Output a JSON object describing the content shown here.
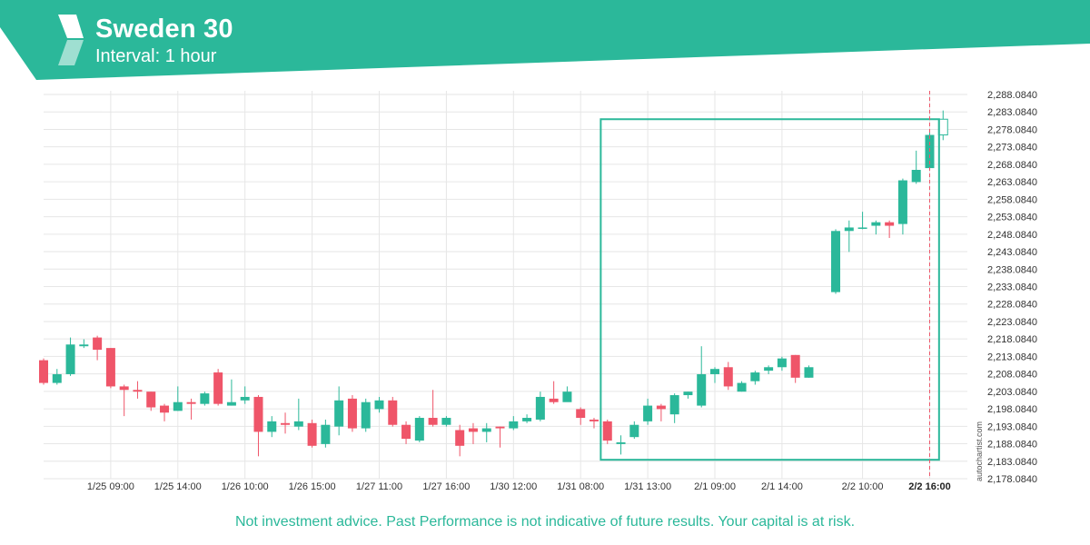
{
  "header": {
    "title": "Sweden 30",
    "subtitle": "Interval: 1 hour",
    "logo_icon": "autochartist-logo-icon",
    "color": "#2bb89a"
  },
  "watermark": "autochartist.com",
  "disclaimer": "Not investment advice. Past Performance is not indicative of future results. Your capital is at risk.",
  "colors": {
    "up": "#2bb89a",
    "down": "#ef5569",
    "pattern": "#2bb89a",
    "grid": "#e6e6e6",
    "axis_text": "#333333"
  },
  "chart_data": {
    "type": "candlestick",
    "y_tick_labels": [
      "2,178.0840",
      "2,183.0840",
      "2,188.0840",
      "2,193.0840",
      "2,198.0840",
      "2,203.0840",
      "2,208.0840",
      "2,213.0840",
      "2,218.0840",
      "2,223.0840",
      "2,228.0840",
      "2,233.0840",
      "2,238.0840",
      "2,243.0840",
      "2,248.0840",
      "2,253.0840",
      "2,258.0840",
      "2,263.0840",
      "2,268.0840",
      "2,273.0840",
      "2,278.0840",
      "2,283.0840",
      "2,288.0840"
    ],
    "ylim": [
      2178.084,
      2288.084
    ],
    "x_tick_labels": [
      "1/25 09:00",
      "1/25 14:00",
      "1/26 10:00",
      "1/26 15:00",
      "1/27 11:00",
      "1/27 16:00",
      "1/30 12:00",
      "1/31 08:00",
      "1/31 13:00",
      "2/1 09:00",
      "2/1 14:00",
      "2/2 10:00",
      "2/2 16:00"
    ],
    "x_tick_candle_index": [
      5,
      10,
      15,
      20,
      25,
      30,
      35,
      40,
      45,
      50,
      55,
      60,
      65
    ],
    "current_label": "2/2 16:00",
    "candles": [
      [
        2212.0,
        2205.5,
        2212.5,
        2205.0
      ],
      [
        2205.5,
        2208.0,
        2209.5,
        2205.0
      ],
      [
        2208.0,
        2216.5,
        2218.5,
        2207.5
      ],
      [
        2216.0,
        2216.5,
        2218.0,
        2215.5
      ],
      [
        2218.5,
        2215.0,
        2219.0,
        2212.0
      ],
      [
        2215.5,
        2204.5,
        2215.5,
        2204.0
      ],
      [
        2204.5,
        2203.5,
        2205.0,
        2196.0
      ],
      [
        2203.5,
        2203.0,
        2206.0,
        2201.0
      ],
      [
        2203.0,
        2198.5,
        2203.0,
        2197.5
      ],
      [
        2199.0,
        2197.0,
        2199.5,
        2194.5
      ],
      [
        2197.5,
        2200.0,
        2204.5,
        2197.5
      ],
      [
        2200.0,
        2199.5,
        2201.0,
        2195.0
      ],
      [
        2199.5,
        2202.5,
        2203.0,
        2199.0
      ],
      [
        2208.5,
        2199.5,
        2209.5,
        2199.0
      ],
      [
        2199.0,
        2200.0,
        2206.5,
        2199.0
      ],
      [
        2200.5,
        2201.5,
        2204.5,
        2199.5
      ],
      [
        2201.5,
        2191.5,
        2202.0,
        2184.5
      ],
      [
        2191.5,
        2194.5,
        2196.0,
        2190.0
      ],
      [
        2194.0,
        2193.5,
        2197.0,
        2191.0
      ],
      [
        2193.0,
        2194.5,
        2201.0,
        2192.0
      ],
      [
        2194.0,
        2187.5,
        2195.0,
        2187.0
      ],
      [
        2188.0,
        2193.5,
        2195.0,
        2187.0
      ],
      [
        2193.0,
        2200.5,
        2204.5,
        2190.5
      ],
      [
        2201.0,
        2192.5,
        2202.0,
        2191.5
      ],
      [
        2192.5,
        2200.0,
        2201.0,
        2191.5
      ],
      [
        2198.0,
        2200.5,
        2201.5,
        2197.0
      ],
      [
        2200.5,
        2193.5,
        2201.5,
        2193.0
      ],
      [
        2193.5,
        2189.5,
        2194.5,
        2188.0
      ],
      [
        2189.0,
        2195.5,
        2196.0,
        2188.5
      ],
      [
        2195.5,
        2193.5,
        2203.5,
        2193.0
      ],
      [
        2193.5,
        2195.5,
        2196.0,
        2193.0
      ],
      [
        2192.0,
        2187.5,
        2193.5,
        2184.5
      ],
      [
        2192.5,
        2191.5,
        2194.0,
        2188.0
      ],
      [
        2191.5,
        2192.5,
        2194.0,
        2188.5
      ],
      [
        2193.0,
        2192.5,
        2193.0,
        2187.0
      ],
      [
        2192.5,
        2194.5,
        2196.0,
        2192.0
      ],
      [
        2194.5,
        2195.5,
        2196.5,
        2194.0
      ],
      [
        2195.0,
        2201.5,
        2203.0,
        2194.5
      ],
      [
        2201.0,
        2200.0,
        2206.0,
        2199.5
      ],
      [
        2200.0,
        2203.0,
        2204.5,
        2200.5
      ],
      [
        2198.0,
        2195.5,
        2198.5,
        2193.5
      ],
      [
        2195.0,
        2194.5,
        2195.5,
        2192.5
      ],
      [
        2194.5,
        2189.0,
        2195.0,
        2188.0
      ],
      [
        2188.0,
        2188.5,
        2190.5,
        2185.0
      ],
      [
        2190.0,
        2193.5,
        2194.5,
        2189.5
      ],
      [
        2194.5,
        2199.0,
        2201.0,
        2193.5
      ],
      [
        2199.0,
        2198.0,
        2199.5,
        2194.5
      ],
      [
        2196.5,
        2202.0,
        2202.5,
        2194.0
      ],
      [
        2202.0,
        2203.0,
        2203.0,
        2201.0
      ],
      [
        2199.0,
        2208.0,
        2216.0,
        2198.5
      ],
      [
        2208.0,
        2209.5,
        2210.0,
        2205.5
      ],
      [
        2210.0,
        2204.5,
        2211.5,
        2203.5
      ],
      [
        2203.0,
        2205.5,
        2206.0,
        2203.0
      ],
      [
        2206.0,
        2208.5,
        2209.0,
        2205.0
      ],
      [
        2209.0,
        2210.0,
        2210.5,
        2208.0
      ],
      [
        2210.0,
        2212.5,
        2213.0,
        2209.0
      ],
      [
        2213.5,
        2207.0,
        2213.5,
        2205.5
      ],
      [
        2207.0,
        2210.0,
        2210.5,
        2207.0
      ],
      [
        2231.5,
        2249.0,
        2249.5,
        2231.0
      ],
      [
        2249.0,
        2250.0,
        2252.0,
        2243.0
      ],
      [
        2250.0,
        2250.0,
        2254.5,
        2249.5
      ],
      [
        2250.5,
        2251.5,
        2252.0,
        2248.0
      ],
      [
        2251.5,
        2250.5,
        2252.0,
        2247.0
      ],
      [
        2251.0,
        2263.5,
        2264.0,
        2248.0
      ],
      [
        2263.0,
        2266.5,
        2272.0,
        2262.5
      ],
      [
        2267.0,
        2276.5,
        2278.0,
        2266.5
      ],
      [
        2276.5,
        2281.0,
        2283.5,
        2275.0
      ]
    ],
    "skip_after_index": 57,
    "pattern_box": {
      "from_index": 41.5,
      "to_index": 65.7,
      "high": 2281.0,
      "low": 2183.5
    },
    "grid": true
  }
}
